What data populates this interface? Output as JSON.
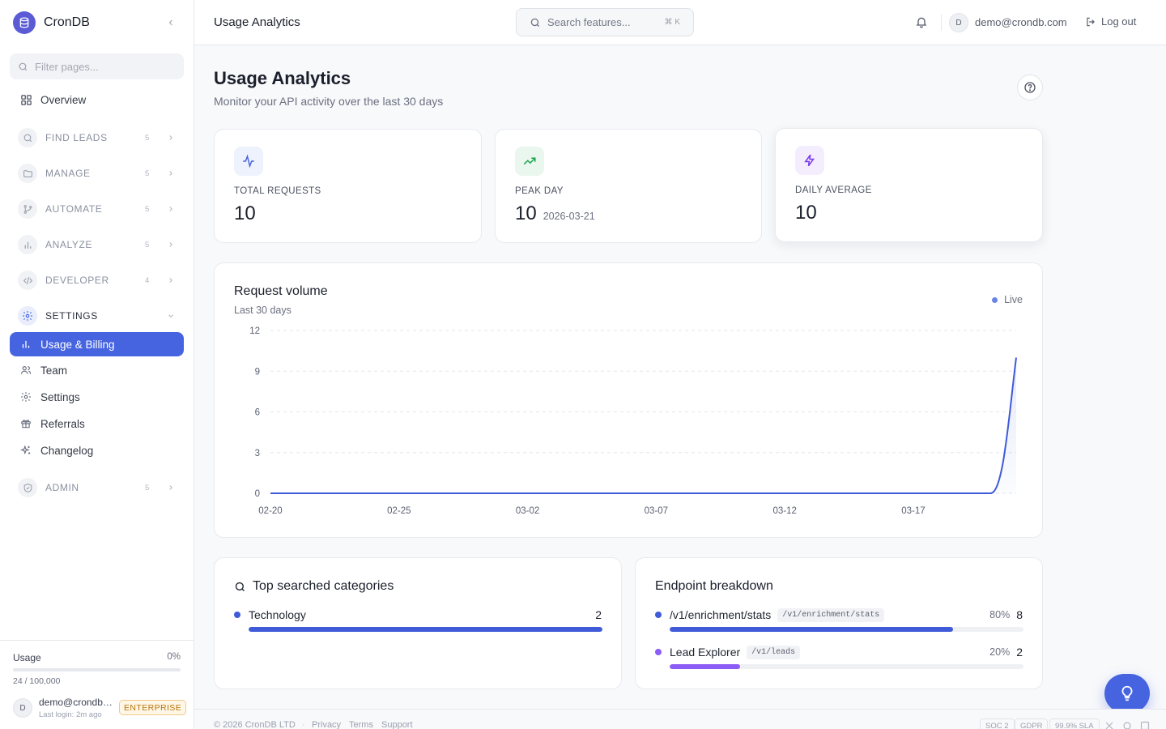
{
  "sidebar": {
    "brand": "CronDB",
    "filter_placeholder": "Filter pages...",
    "overview": "Overview",
    "groups": [
      {
        "label": "FIND LEADS",
        "count": "5"
      },
      {
        "label": "MANAGE",
        "count": "5"
      },
      {
        "label": "AUTOMATE",
        "count": "5"
      },
      {
        "label": "ANALYZE",
        "count": "5"
      },
      {
        "label": "DEVELOPER",
        "count": "4"
      },
      {
        "label": "SETTINGS",
        "count": ""
      },
      {
        "label": "ADMIN",
        "count": "5"
      }
    ],
    "settings_items": [
      {
        "label": "Usage & Billing",
        "icon": "bar-chart-icon"
      },
      {
        "label": "Team",
        "icon": "users-icon"
      },
      {
        "label": "Settings",
        "icon": "gear-icon"
      },
      {
        "label": "Referrals",
        "icon": "gift-icon"
      },
      {
        "label": "Changelog",
        "icon": "sparkles-icon"
      }
    ],
    "usage": {
      "label": "Usage",
      "percent": "0%",
      "fill_fraction": 0.00024,
      "count": "24 / 100,000"
    },
    "account": {
      "avatar": "D",
      "email": "demo@crondb.com",
      "last_login": "Last login: 2m ago",
      "plan": "ENTERPRISE"
    }
  },
  "topbar": {
    "title": "Usage Analytics",
    "search_placeholder": "Search features...",
    "search_shortcut": "⌘ K",
    "avatar": "D",
    "email": "demo@crondb.com",
    "logout": "Log out"
  },
  "page": {
    "title": "Usage Analytics",
    "subtitle": "Monitor your API activity over the last 30 days"
  },
  "stats": [
    {
      "label": "TOTAL REQUESTS",
      "value": "10",
      "date": "",
      "icon": "activity-icon",
      "color": "#4664e0",
      "bg": "#eef2fd"
    },
    {
      "label": "PEAK DAY",
      "value": "10",
      "date": "2026-03-21",
      "icon": "trending-up-icon",
      "color": "#16a34a",
      "bg": "#eaf7ef"
    },
    {
      "label": "DAILY AVERAGE",
      "value": "10",
      "date": "",
      "icon": "zap-icon",
      "color": "#7c3aed",
      "bg": "#f3edfd"
    }
  ],
  "request_volume": {
    "title": "Request volume",
    "subtitle": "Last 30 days",
    "status": "Live",
    "line_color": "#3f5bd8"
  },
  "chart_data": {
    "type": "area",
    "x": [
      "02-20",
      "02-21",
      "02-22",
      "02-23",
      "02-24",
      "02-25",
      "02-26",
      "02-27",
      "02-28",
      "03-01",
      "03-02",
      "03-03",
      "03-04",
      "03-05",
      "03-06",
      "03-07",
      "03-08",
      "03-09",
      "03-10",
      "03-11",
      "03-12",
      "03-13",
      "03-14",
      "03-15",
      "03-16",
      "03-17",
      "03-18",
      "03-19",
      "03-20",
      "03-21"
    ],
    "values": [
      0,
      0,
      0,
      0,
      0,
      0,
      0,
      0,
      0,
      0,
      0,
      0,
      0,
      0,
      0,
      0,
      0,
      0,
      0,
      0,
      0,
      0,
      0,
      0,
      0,
      0,
      0,
      0,
      0,
      10
    ],
    "x_ticks": [
      "02-20",
      "02-25",
      "03-02",
      "03-07",
      "03-12",
      "03-17"
    ],
    "y_ticks": [
      0,
      3,
      6,
      9,
      12
    ],
    "ylim": [
      0,
      12
    ],
    "grid": true
  },
  "top_categories": {
    "title": "Top searched categories",
    "items": [
      {
        "name": "Technology",
        "value": "2",
        "fraction": 1.0,
        "color": "#3f5bd8"
      }
    ]
  },
  "endpoints": {
    "title": "Endpoint breakdown",
    "items": [
      {
        "name": "/v1/enrichment/stats",
        "path": "/v1/enrichment/stats",
        "percent": "80%",
        "fraction": 0.8,
        "value": "8",
        "color": "#3f5bd8"
      },
      {
        "name": "Lead Explorer",
        "path": "/v1/leads",
        "percent": "20%",
        "fraction": 0.2,
        "value": "2",
        "color": "#8b5cf6"
      }
    ]
  },
  "footer": {
    "copyright": "© 2026 CronDB LTD",
    "links": [
      "Privacy",
      "Terms",
      "Support"
    ],
    "badges": [
      "SOC 2",
      "GDPR",
      "99.9% SLA"
    ]
  }
}
